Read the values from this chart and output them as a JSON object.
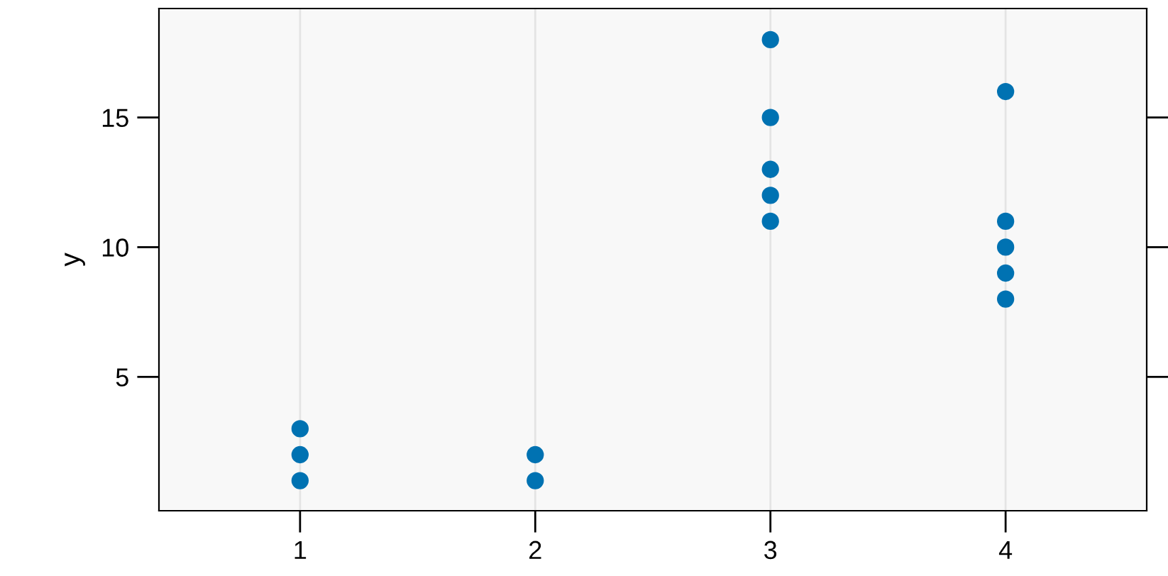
{
  "chart_data": {
    "type": "scatter",
    "ylabel": "y",
    "series": [
      {
        "color": "#0072b2",
        "x": [
          1,
          1,
          1,
          2,
          2,
          3,
          3,
          3,
          3,
          3,
          4,
          4,
          4,
          4,
          4
        ],
        "values": [
          1,
          2,
          3,
          1,
          2,
          11,
          12,
          13,
          15,
          18,
          8,
          9,
          10,
          11,
          16
        ]
      }
    ],
    "xlim": [
      0.4,
      4.6
    ],
    "xticks": [
      1,
      2,
      3,
      4
    ],
    "ylim": [
      -0.16,
      19.2
    ],
    "yticks": [
      5,
      10,
      15
    ],
    "grid": "x",
    "marker": "circle",
    "legend": false
  }
}
